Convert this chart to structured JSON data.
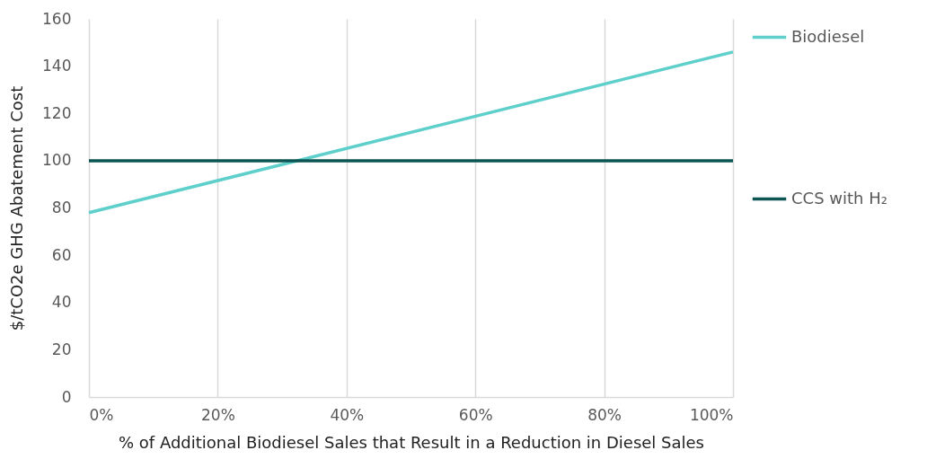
{
  "chart_data": {
    "type": "line",
    "xlabel": "% of Additional Biodiesel Sales that Result in a Reduction in Diesel Sales",
    "ylabel": "$/tCO2e GHG Abatement Cost",
    "x": [
      0,
      100
    ],
    "series": [
      {
        "name": "Biodiesel",
        "color": "#5ecfcb",
        "values": [
          78,
          146
        ]
      },
      {
        "name": "CCS with H₂",
        "color": "#0b5552",
        "values": [
          100,
          100
        ]
      }
    ],
    "xlim": [
      0,
      100
    ],
    "xticks": [
      {
        "value": 0,
        "label": "0%"
      },
      {
        "value": 20,
        "label": "20%"
      },
      {
        "value": 40,
        "label": "40%"
      },
      {
        "value": 60,
        "label": "60%"
      },
      {
        "value": 80,
        "label": "80%"
      },
      {
        "value": 100,
        "label": "100%"
      }
    ],
    "ylim": [
      0,
      160
    ],
    "yticks": [
      0,
      20,
      40,
      60,
      80,
      100,
      120,
      140,
      160
    ],
    "grid": "x",
    "legend": "right",
    "marker": "none",
    "line_style": "solid"
  }
}
